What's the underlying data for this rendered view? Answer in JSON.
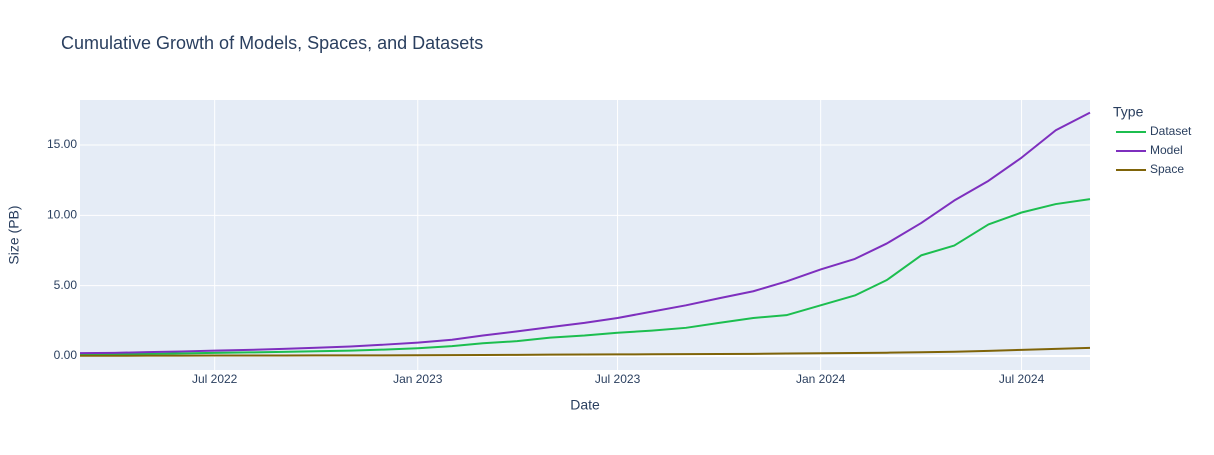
{
  "chart_data": {
    "type": "line",
    "title": "Cumulative Growth of Models, Spaces, and Datasets",
    "x_label": "Date",
    "y_label": "Size (PB)",
    "legend_title": "Type",
    "x": [
      "2022-03-01",
      "2022-04-01",
      "2022-05-01",
      "2022-06-01",
      "2022-07-01",
      "2022-08-01",
      "2022-09-01",
      "2022-10-01",
      "2022-11-01",
      "2022-12-01",
      "2023-01-01",
      "2023-02-01",
      "2023-03-01",
      "2023-04-01",
      "2023-05-01",
      "2023-06-01",
      "2023-07-01",
      "2023-08-01",
      "2023-09-01",
      "2023-10-01",
      "2023-11-01",
      "2023-12-01",
      "2024-01-01",
      "2024-02-01",
      "2024-03-01",
      "2024-04-01",
      "2024-05-01",
      "2024-06-01",
      "2024-07-01",
      "2024-08-01",
      "2024-09-01"
    ],
    "series": [
      {
        "name": "Dataset",
        "color": "#1cbe4f",
        "values": [
          0.1,
          0.12,
          0.15,
          0.18,
          0.22,
          0.25,
          0.29,
          0.33,
          0.38,
          0.45,
          0.55,
          0.7,
          0.9,
          1.05,
          1.3,
          1.45,
          1.65,
          1.8,
          2.0,
          2.35,
          2.7,
          2.9,
          3.6,
          4.3,
          5.4,
          7.15,
          7.85,
          9.35,
          10.2,
          10.8,
          11.15
        ]
      },
      {
        "name": "Model",
        "color": "#7e2fbe",
        "values": [
          0.2,
          0.22,
          0.27,
          0.32,
          0.38,
          0.43,
          0.5,
          0.58,
          0.67,
          0.8,
          0.95,
          1.15,
          1.45,
          1.75,
          2.05,
          2.35,
          2.7,
          3.15,
          3.6,
          4.1,
          4.6,
          5.3,
          6.15,
          6.9,
          8.0,
          9.45,
          11.05,
          12.45,
          14.1,
          16.05,
          17.3
        ]
      },
      {
        "name": "Space",
        "color": "#7f6409",
        "values": [
          0.01,
          0.01,
          0.02,
          0.02,
          0.03,
          0.03,
          0.03,
          0.04,
          0.04,
          0.04,
          0.05,
          0.06,
          0.07,
          0.08,
          0.09,
          0.1,
          0.11,
          0.12,
          0.13,
          0.14,
          0.15,
          0.17,
          0.19,
          0.21,
          0.23,
          0.26,
          0.3,
          0.36,
          0.43,
          0.5,
          0.57
        ]
      }
    ],
    "xlim": [
      "2022-03-01",
      "2024-09-01"
    ],
    "xticks": [
      {
        "value": "2022-07-01",
        "label": "Jul 2022"
      },
      {
        "value": "2023-01-01",
        "label": "Jan 2023"
      },
      {
        "value": "2023-07-01",
        "label": "Jul 2023"
      },
      {
        "value": "2024-01-01",
        "label": "Jan 2024"
      },
      {
        "value": "2024-07-01",
        "label": "Jul 2024"
      }
    ],
    "ylim": [
      -1.0,
      18.2
    ],
    "yticks": [
      {
        "value": 0,
        "label": "0.00"
      },
      {
        "value": 5,
        "label": "5.00"
      },
      {
        "value": 10,
        "label": "10.00"
      },
      {
        "value": 15,
        "label": "15.00"
      }
    ],
    "grid": true,
    "legend_position": "right"
  }
}
